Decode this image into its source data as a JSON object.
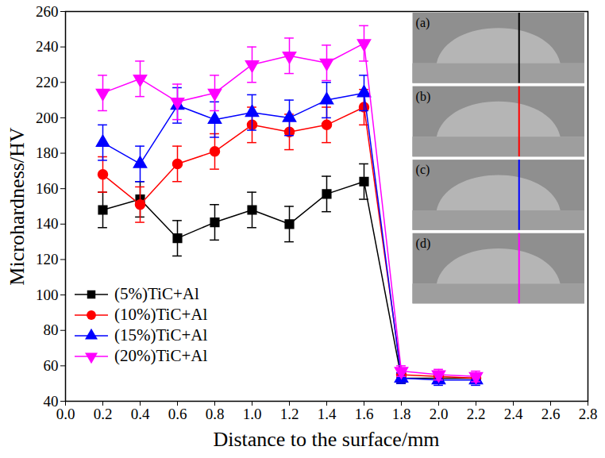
{
  "chart_data": {
    "type": "line",
    "x_label": "Distance to the surface/mm",
    "y_label": "Microhardness/HV",
    "x": [
      0.2,
      0.4,
      0.6,
      0.8,
      1.0,
      1.2,
      1.4,
      1.6,
      1.8,
      2.0,
      2.2
    ],
    "series": [
      {
        "name": "(5%)TiC+Al",
        "color": "#000000",
        "marker": "square",
        "values": [
          148,
          154,
          132,
          141,
          148,
          140,
          157,
          164,
          53,
          53,
          53
        ],
        "errors": [
          10,
          10,
          10,
          10,
          10,
          10,
          10,
          10,
          3,
          3,
          3
        ]
      },
      {
        "name": "(10%)TiC+Al",
        "color": "#ff0000",
        "marker": "circle",
        "values": [
          168,
          151,
          174,
          181,
          196,
          192,
          196,
          206,
          55,
          54,
          53
        ],
        "errors": [
          10,
          10,
          10,
          10,
          10,
          10,
          10,
          10,
          3,
          3,
          3
        ]
      },
      {
        "name": "(15%)TiC+Al",
        "color": "#0000ff",
        "marker": "triangle",
        "values": [
          186,
          174,
          207,
          199,
          203,
          200,
          210,
          214,
          53,
          52,
          52
        ],
        "errors": [
          10,
          10,
          10,
          10,
          10,
          10,
          10,
          10,
          3,
          3,
          3
        ]
      },
      {
        "name": "(20%)TiC+Al",
        "color": "#ff00ff",
        "marker": "triangle-down",
        "values": [
          214,
          222,
          209,
          214,
          230,
          235,
          231,
          242,
          57,
          55,
          54
        ],
        "errors": [
          10,
          10,
          10,
          10,
          10,
          10,
          10,
          10,
          3,
          3,
          3
        ]
      }
    ],
    "xlim": [
      0,
      2.8
    ],
    "xticks": [
      {
        "value": 0,
        "label": "0.0"
      },
      0.2,
      0.4,
      0.6,
      0.8,
      {
        "value": 1,
        "label": "1.0"
      },
      1.2,
      1.4,
      1.6,
      1.8,
      {
        "value": 2,
        "label": "2.0"
      },
      2.2,
      2.4,
      2.6,
      2.8
    ],
    "ylim": [
      40,
      260
    ],
    "yticks": [
      40,
      60,
      80,
      100,
      120,
      140,
      160,
      180,
      200,
      220,
      240,
      260
    ],
    "grid": false,
    "legend": "lower left",
    "annotations": [
      "(a)",
      "(b)",
      "(c)",
      "(d)"
    ]
  }
}
